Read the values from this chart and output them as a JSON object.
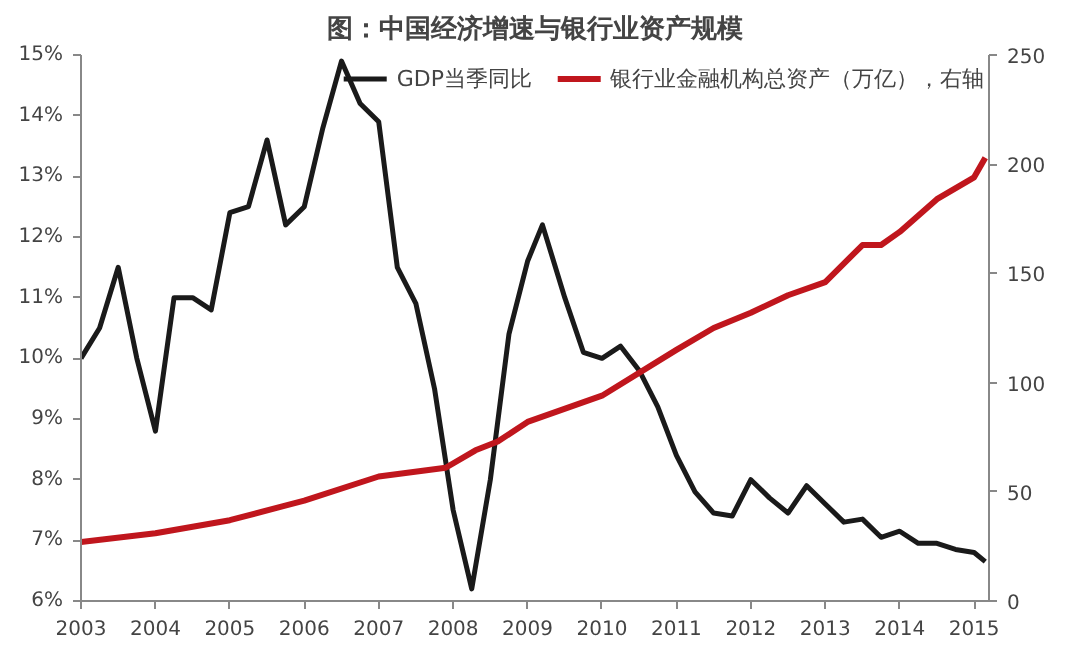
{
  "chart_data": {
    "type": "line",
    "title": "图：中国经济增速与银行业资产规模",
    "legend": "top",
    "grid": false,
    "marker": "none",
    "line_style": "solid",
    "xlim": [
      2003,
      2015.2
    ],
    "xticks": [
      2003,
      2004,
      2005,
      2006,
      2007,
      2008,
      2009,
      2010,
      2011,
      2012,
      2013,
      2014,
      2015
    ],
    "ylim": [
      6,
      15
    ],
    "yticks": [
      {
        "value": 6,
        "label": "6%"
      },
      {
        "value": 7,
        "label": "7%"
      },
      {
        "value": 8,
        "label": "8%"
      },
      {
        "value": 9,
        "label": "9%"
      },
      {
        "value": 10,
        "label": "10%"
      },
      {
        "value": 11,
        "label": "11%"
      },
      {
        "value": 12,
        "label": "12%"
      },
      {
        "value": 13,
        "label": "13%"
      },
      {
        "value": 14,
        "label": "14%"
      },
      {
        "value": 15,
        "label": "15%"
      }
    ],
    "y2lim": [
      0,
      250
    ],
    "y2ticks": [
      0,
      50,
      100,
      150,
      200,
      250
    ],
    "series": [
      {
        "name": "GDP当季同比",
        "color": "#1a1a1a",
        "x": [
          2003,
          2003.25,
          2003.5,
          2003.75,
          2004,
          2004.25,
          2004.5,
          2004.75,
          2005,
          2005.25,
          2005.5,
          2005.75,
          2006,
          2006.25,
          2006.5,
          2006.75,
          2007,
          2007.25,
          2007.5,
          2007.75,
          2008,
          2008.25,
          2008.5,
          2008.75,
          2009,
          2009.2,
          2009.5,
          2009.75,
          2010,
          2010.25,
          2010.5,
          2010.75,
          2011,
          2011.25,
          2011.5,
          2011.75,
          2012,
          2012.25,
          2012.5,
          2012.75,
          2013,
          2013.25,
          2013.5,
          2013.75,
          2014,
          2014.25,
          2014.5,
          2014.75,
          2015,
          2015.15
        ],
        "values": [
          10.0,
          10.5,
          11.5,
          10.0,
          8.8,
          11.0,
          11.0,
          10.8,
          12.4,
          12.5,
          13.6,
          12.2,
          12.5,
          13.8,
          14.9,
          14.2,
          13.9,
          11.5,
          10.9,
          9.5,
          7.5,
          6.2,
          8.0,
          10.4,
          11.6,
          12.2,
          11.0,
          10.1,
          10.0,
          10.2,
          9.8,
          9.2,
          8.4,
          7.8,
          7.45,
          7.4,
          8.0,
          7.7,
          7.45,
          7.9,
          7.6,
          7.3,
          7.35,
          7.05,
          7.15,
          6.95,
          6.95,
          6.85,
          6.8,
          6.65
        ]
      },
      {
        "name": "银行业金融机构总资产（万亿），右轴",
        "color": "#c0161d",
        "axis": "y2",
        "x": [
          2003,
          2004,
          2005,
          2006,
          2007,
          2007.9,
          2008.3,
          2008.6,
          2009,
          2010,
          2011,
          2011.5,
          2012,
          2012.5,
          2013,
          2013.5,
          2013.75,
          2014,
          2014.5,
          2015,
          2015.15
        ],
        "values": [
          27,
          31,
          37,
          46,
          57,
          61,
          69,
          73,
          82,
          94,
          115,
          125,
          132,
          140,
          146,
          163,
          163,
          169,
          184,
          194,
          203
        ]
      }
    ]
  }
}
